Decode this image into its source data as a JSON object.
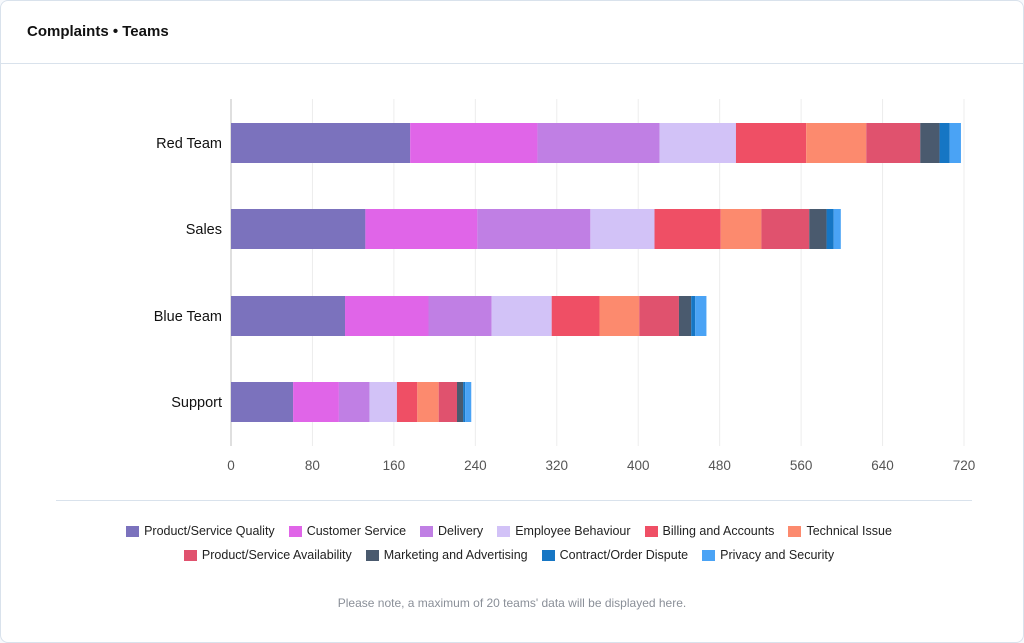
{
  "header": {
    "title": "Complaints • Teams"
  },
  "note": "Please note, a maximum of 20 teams' data will be displayed here.",
  "chart_data": {
    "type": "bar",
    "orientation": "horizontal",
    "stacked": true,
    "categories": [
      "Red Team",
      "Sales",
      "Blue Team",
      "Support"
    ],
    "xlim": [
      0,
      720
    ],
    "x_ticks": [
      0,
      80,
      160,
      240,
      320,
      400,
      480,
      560,
      640,
      720
    ],
    "grid": true,
    "legend_position": "bottom",
    "series": [
      {
        "name": "Product/Service Quality",
        "color": "#7b72bd",
        "values": [
          176,
          132,
          112,
          61
        ]
      },
      {
        "name": "Customer Service",
        "color": "#e065e8",
        "values": [
          125,
          110,
          82,
          45
        ]
      },
      {
        "name": "Delivery",
        "color": "#c07fe4",
        "values": [
          120,
          111,
          62,
          30
        ]
      },
      {
        "name": "Employee Behaviour",
        "color": "#d2c2f7",
        "values": [
          75,
          63,
          59,
          27
        ]
      },
      {
        "name": "Billing and Accounts",
        "color": "#ef4f65",
        "values": [
          69,
          65,
          47,
          20
        ]
      },
      {
        "name": "Technical Issue",
        "color": "#fc8a6e",
        "values": [
          59,
          40,
          39,
          21
        ]
      },
      {
        "name": "Product/Service Availability",
        "color": "#e0526e",
        "values": [
          53,
          47,
          39,
          18
        ]
      },
      {
        "name": "Marketing and Advertising",
        "color": "#4a5a6e",
        "values": [
          19,
          17,
          12,
          6
        ]
      },
      {
        "name": "Contract/Order Dispute",
        "color": "#1676c4",
        "values": [
          10,
          7,
          4,
          2
        ]
      },
      {
        "name": "Privacy and Security",
        "color": "#4aa3f5",
        "values": [
          11,
          7,
          11,
          6
        ]
      }
    ]
  }
}
